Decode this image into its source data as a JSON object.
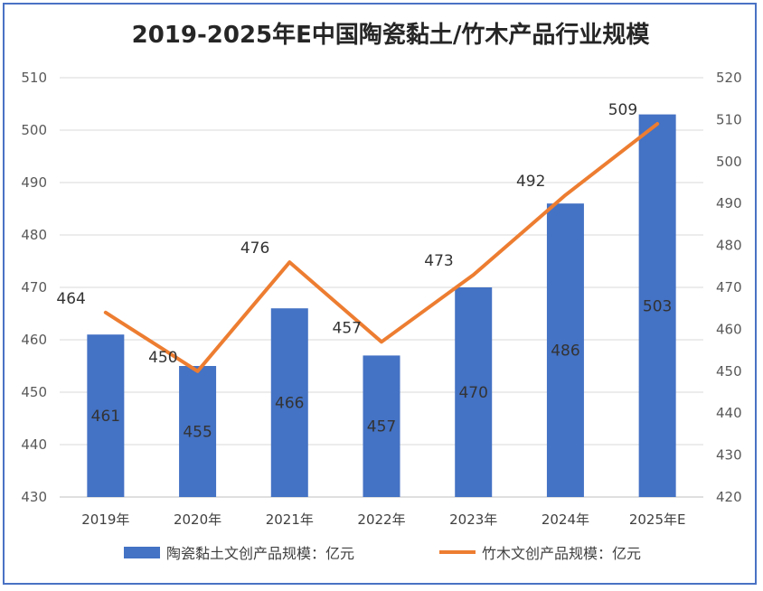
{
  "chart_data": {
    "type": "bar+line",
    "title": "2019-2025年E中国陶瓷黏土/竹木产品行业规模",
    "categories": [
      "2019年",
      "2020年",
      "2021年",
      "2022年",
      "2023年",
      "2024年",
      "2025年E"
    ],
    "series": [
      {
        "name": "陶瓷黏土文创产品规模：亿元",
        "type": "bar",
        "axis": "left",
        "color": "#4472c4",
        "values": [
          461,
          455,
          466,
          457,
          470,
          486,
          503
        ]
      },
      {
        "name": "竹木文创产品规模：亿元",
        "type": "line",
        "axis": "right",
        "color": "#ed7d31",
        "values": [
          464,
          450,
          476,
          457,
          473,
          492,
          509
        ]
      }
    ],
    "y_left": {
      "min": 430,
      "max": 510,
      "step": 10,
      "ticks": [
        "430",
        "440",
        "450",
        "460",
        "470",
        "480",
        "490",
        "500",
        "510"
      ]
    },
    "y_right": {
      "min": 420,
      "max": 520,
      "step": 10,
      "ticks": [
        "420",
        "430",
        "440",
        "450",
        "460",
        "470",
        "480",
        "490",
        "500",
        "510",
        "520"
      ]
    },
    "grid": true,
    "legend_position": "bottom"
  }
}
